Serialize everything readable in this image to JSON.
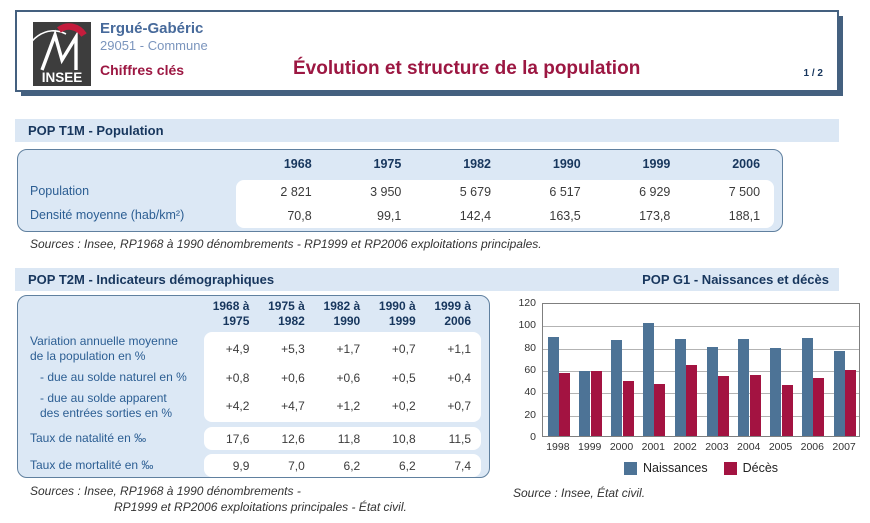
{
  "header": {
    "logo_text": "INSEE",
    "commune": "Ergué-Gabéric",
    "code": "29051 - Commune",
    "product": "Chiffres clés",
    "title": "Évolution et structure de la population",
    "page": "1 / 2"
  },
  "t1m": {
    "title": "POP T1M - Population",
    "columns": [
      "1968",
      "1975",
      "1982",
      "1990",
      "1999",
      "2006"
    ],
    "rows": [
      {
        "label": "Population",
        "values": [
          "2 821",
          "3 950",
          "5 679",
          "6 517",
          "6 929",
          "7 500"
        ]
      },
      {
        "label": "Densité moyenne (hab/km²)",
        "values": [
          "70,8",
          "99,1",
          "142,4",
          "163,5",
          "173,8",
          "188,1"
        ]
      }
    ],
    "source": "Sources : Insee,  RP1968 à 1990 dénombrements - RP1999 et RP2006 exploitations principales."
  },
  "t2m": {
    "title": "POP T2M - Indicateurs démographiques",
    "columns": [
      "1968 à\n1975",
      "1975 à\n1982",
      "1982 à\n1990",
      "1990 à\n1999",
      "1999 à\n2006"
    ],
    "rows": [
      {
        "label": "Variation annuelle moyenne\nde la population en %",
        "indent": false,
        "values": [
          "+4,9",
          "+5,3",
          "+1,7",
          "+0,7",
          "+1,1"
        ]
      },
      {
        "label": "- due au solde naturel en %",
        "indent": true,
        "values": [
          "+0,8",
          "+0,6",
          "+0,6",
          "+0,5",
          "+0,4"
        ]
      },
      {
        "label": "- due au solde apparent\ndes entrées sorties en %",
        "indent": true,
        "values": [
          "+4,2",
          "+4,7",
          "+1,2",
          "+0,2",
          "+0,7"
        ]
      },
      {
        "label": "Taux de natalité en ‰",
        "indent": false,
        "values": [
          "17,6",
          "12,6",
          "11,8",
          "10,8",
          "11,5"
        ]
      },
      {
        "label": "Taux de mortalité en ‰",
        "indent": false,
        "values": [
          "9,9",
          "7,0",
          "6,2",
          "6,2",
          "7,4"
        ]
      }
    ],
    "source_line1": "Sources : Insee,  RP1968 à 1990 dénombrements -",
    "source_line2": "RP1999 et RP2006 exploitations principales - État civil."
  },
  "g1": {
    "title": "POP G1 - Naissances et décès",
    "source": "Source : Insee, État civil."
  },
  "chart_data": {
    "type": "bar",
    "title": "POP G1 - Naissances et décès",
    "categories": [
      "1998",
      "1999",
      "2000",
      "2001",
      "2002",
      "2003",
      "2004",
      "2005",
      "2006",
      "2007"
    ],
    "series": [
      {
        "name": "Naissances",
        "color": "#4d7396",
        "values": [
          89,
          58,
          86,
          101,
          87,
          80,
          87,
          79,
          88,
          76
        ]
      },
      {
        "name": "Décès",
        "color": "#a31341",
        "values": [
          56,
          58,
          49,
          47,
          64,
          54,
          55,
          46,
          52,
          59
        ]
      }
    ],
    "xlabel": "",
    "ylabel": "",
    "ylim": [
      0,
      120
    ],
    "yticks": [
      0,
      20,
      40,
      60,
      80,
      100,
      120
    ],
    "grid": true,
    "legend_position": "bottom"
  },
  "colors": {
    "accent_red": "#9c1742",
    "navy": "#17365d",
    "band_bg": "#dbe7f4",
    "table_bg": "#dce8f5",
    "bar_blue": "#4d7396",
    "bar_red": "#a31341",
    "logo_red": "#c41c3c"
  }
}
